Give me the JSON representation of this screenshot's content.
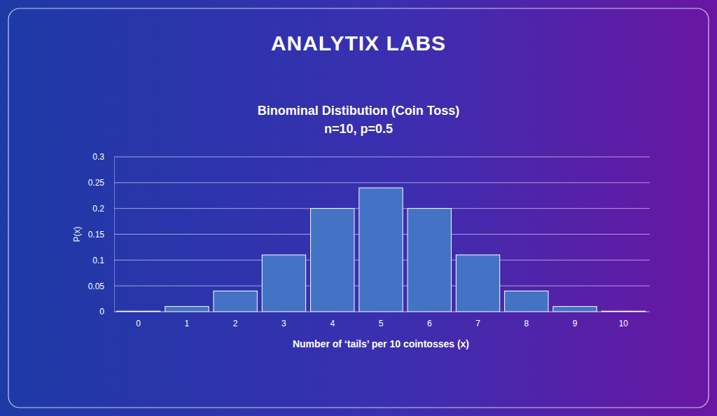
{
  "header": {
    "logo": "ANALYTIX LABS"
  },
  "chart_data": {
    "type": "bar",
    "title": "Binominal Distibution (Coin Toss)",
    "subtitle": "n=10, p=0.5",
    "x_label": "Number of ‘tails’ per 10 cointosses (x)",
    "y_label": "P(x)",
    "categories": [
      "0",
      "1",
      "2",
      "3",
      "4",
      "5",
      "6",
      "7",
      "8",
      "9",
      "10"
    ],
    "values": [
      0.001,
      0.01,
      0.04,
      0.11,
      0.2,
      0.24,
      0.2,
      0.11,
      0.04,
      0.01,
      0.001
    ],
    "color": "#4472c4",
    "ylim": [
      0,
      0.3
    ],
    "yticks": [
      0,
      0.05,
      0.1,
      0.15,
      0.2,
      0.25,
      0.3
    ],
    "grid": true
  }
}
